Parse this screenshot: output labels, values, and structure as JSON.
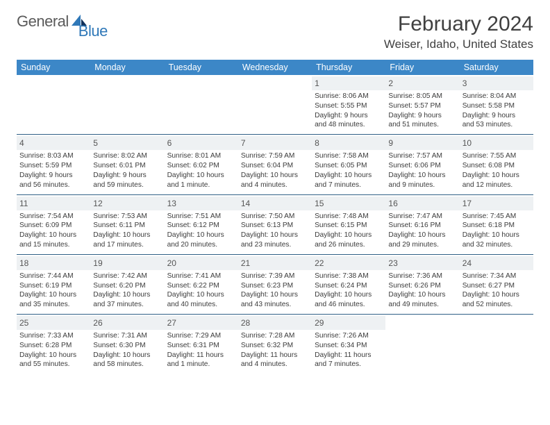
{
  "brand": {
    "word1": "General",
    "word2": "Blue"
  },
  "title": "February 2024",
  "location": "Weiser, Idaho, United States",
  "colors": {
    "header_bg": "#3c87c7",
    "row_border": "#2f5f86",
    "daynum_bg": "#eef1f3",
    "brand_gray": "#5a5a5a",
    "brand_blue": "#2f78b8"
  },
  "weekdays": [
    "Sunday",
    "Monday",
    "Tuesday",
    "Wednesday",
    "Thursday",
    "Friday",
    "Saturday"
  ],
  "weeks": [
    [
      null,
      null,
      null,
      null,
      {
        "n": "1",
        "sr": "Sunrise: 8:06 AM",
        "ss": "Sunset: 5:55 PM",
        "d1": "Daylight: 9 hours",
        "d2": "and 48 minutes."
      },
      {
        "n": "2",
        "sr": "Sunrise: 8:05 AM",
        "ss": "Sunset: 5:57 PM",
        "d1": "Daylight: 9 hours",
        "d2": "and 51 minutes."
      },
      {
        "n": "3",
        "sr": "Sunrise: 8:04 AM",
        "ss": "Sunset: 5:58 PM",
        "d1": "Daylight: 9 hours",
        "d2": "and 53 minutes."
      }
    ],
    [
      {
        "n": "4",
        "sr": "Sunrise: 8:03 AM",
        "ss": "Sunset: 5:59 PM",
        "d1": "Daylight: 9 hours",
        "d2": "and 56 minutes."
      },
      {
        "n": "5",
        "sr": "Sunrise: 8:02 AM",
        "ss": "Sunset: 6:01 PM",
        "d1": "Daylight: 9 hours",
        "d2": "and 59 minutes."
      },
      {
        "n": "6",
        "sr": "Sunrise: 8:01 AM",
        "ss": "Sunset: 6:02 PM",
        "d1": "Daylight: 10 hours",
        "d2": "and 1 minute."
      },
      {
        "n": "7",
        "sr": "Sunrise: 7:59 AM",
        "ss": "Sunset: 6:04 PM",
        "d1": "Daylight: 10 hours",
        "d2": "and 4 minutes."
      },
      {
        "n": "8",
        "sr": "Sunrise: 7:58 AM",
        "ss": "Sunset: 6:05 PM",
        "d1": "Daylight: 10 hours",
        "d2": "and 7 minutes."
      },
      {
        "n": "9",
        "sr": "Sunrise: 7:57 AM",
        "ss": "Sunset: 6:06 PM",
        "d1": "Daylight: 10 hours",
        "d2": "and 9 minutes."
      },
      {
        "n": "10",
        "sr": "Sunrise: 7:55 AM",
        "ss": "Sunset: 6:08 PM",
        "d1": "Daylight: 10 hours",
        "d2": "and 12 minutes."
      }
    ],
    [
      {
        "n": "11",
        "sr": "Sunrise: 7:54 AM",
        "ss": "Sunset: 6:09 PM",
        "d1": "Daylight: 10 hours",
        "d2": "and 15 minutes."
      },
      {
        "n": "12",
        "sr": "Sunrise: 7:53 AM",
        "ss": "Sunset: 6:11 PM",
        "d1": "Daylight: 10 hours",
        "d2": "and 17 minutes."
      },
      {
        "n": "13",
        "sr": "Sunrise: 7:51 AM",
        "ss": "Sunset: 6:12 PM",
        "d1": "Daylight: 10 hours",
        "d2": "and 20 minutes."
      },
      {
        "n": "14",
        "sr": "Sunrise: 7:50 AM",
        "ss": "Sunset: 6:13 PM",
        "d1": "Daylight: 10 hours",
        "d2": "and 23 minutes."
      },
      {
        "n": "15",
        "sr": "Sunrise: 7:48 AM",
        "ss": "Sunset: 6:15 PM",
        "d1": "Daylight: 10 hours",
        "d2": "and 26 minutes."
      },
      {
        "n": "16",
        "sr": "Sunrise: 7:47 AM",
        "ss": "Sunset: 6:16 PM",
        "d1": "Daylight: 10 hours",
        "d2": "and 29 minutes."
      },
      {
        "n": "17",
        "sr": "Sunrise: 7:45 AM",
        "ss": "Sunset: 6:18 PM",
        "d1": "Daylight: 10 hours",
        "d2": "and 32 minutes."
      }
    ],
    [
      {
        "n": "18",
        "sr": "Sunrise: 7:44 AM",
        "ss": "Sunset: 6:19 PM",
        "d1": "Daylight: 10 hours",
        "d2": "and 35 minutes."
      },
      {
        "n": "19",
        "sr": "Sunrise: 7:42 AM",
        "ss": "Sunset: 6:20 PM",
        "d1": "Daylight: 10 hours",
        "d2": "and 37 minutes."
      },
      {
        "n": "20",
        "sr": "Sunrise: 7:41 AM",
        "ss": "Sunset: 6:22 PM",
        "d1": "Daylight: 10 hours",
        "d2": "and 40 minutes."
      },
      {
        "n": "21",
        "sr": "Sunrise: 7:39 AM",
        "ss": "Sunset: 6:23 PM",
        "d1": "Daylight: 10 hours",
        "d2": "and 43 minutes."
      },
      {
        "n": "22",
        "sr": "Sunrise: 7:38 AM",
        "ss": "Sunset: 6:24 PM",
        "d1": "Daylight: 10 hours",
        "d2": "and 46 minutes."
      },
      {
        "n": "23",
        "sr": "Sunrise: 7:36 AM",
        "ss": "Sunset: 6:26 PM",
        "d1": "Daylight: 10 hours",
        "d2": "and 49 minutes."
      },
      {
        "n": "24",
        "sr": "Sunrise: 7:34 AM",
        "ss": "Sunset: 6:27 PM",
        "d1": "Daylight: 10 hours",
        "d2": "and 52 minutes."
      }
    ],
    [
      {
        "n": "25",
        "sr": "Sunrise: 7:33 AM",
        "ss": "Sunset: 6:28 PM",
        "d1": "Daylight: 10 hours",
        "d2": "and 55 minutes."
      },
      {
        "n": "26",
        "sr": "Sunrise: 7:31 AM",
        "ss": "Sunset: 6:30 PM",
        "d1": "Daylight: 10 hours",
        "d2": "and 58 minutes."
      },
      {
        "n": "27",
        "sr": "Sunrise: 7:29 AM",
        "ss": "Sunset: 6:31 PM",
        "d1": "Daylight: 11 hours",
        "d2": "and 1 minute."
      },
      {
        "n": "28",
        "sr": "Sunrise: 7:28 AM",
        "ss": "Sunset: 6:32 PM",
        "d1": "Daylight: 11 hours",
        "d2": "and 4 minutes."
      },
      {
        "n": "29",
        "sr": "Sunrise: 7:26 AM",
        "ss": "Sunset: 6:34 PM",
        "d1": "Daylight: 11 hours",
        "d2": "and 7 minutes."
      },
      null,
      null
    ]
  ]
}
